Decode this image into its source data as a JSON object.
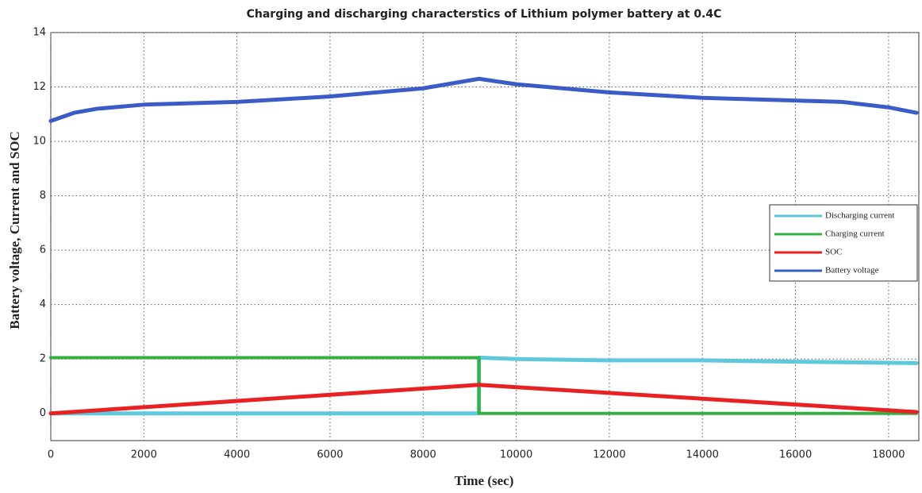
{
  "chart_data": {
    "type": "line",
    "title": "Charging and discharging characterstics of Lithium polymer  battery at 0.4C",
    "x_label": "Time (sec)",
    "y_label": "Battery voltage, Current and SOC",
    "xlim": [
      0,
      18650
    ],
    "ylim": [
      -1,
      14
    ],
    "xticks": [
      0,
      2000,
      4000,
      6000,
      8000,
      10000,
      12000,
      14000,
      16000,
      18000
    ],
    "yticks": [
      0,
      2,
      4,
      6,
      8,
      10,
      12,
      14
    ],
    "grid": true,
    "legend": "center right",
    "series": [
      {
        "name": "Discharging current",
        "color": "#5ec8dc",
        "x": [
          0,
          9200,
          9200,
          10000,
          12000,
          14000,
          16000,
          17000,
          18600
        ],
        "values": [
          0,
          0,
          2.05,
          2.0,
          1.95,
          1.95,
          1.9,
          1.88,
          1.85
        ]
      },
      {
        "name": "Charging current",
        "color": "#35b043",
        "x": [
          0,
          9200,
          9200,
          18600
        ],
        "values": [
          2.05,
          2.05,
          0,
          0
        ]
      },
      {
        "name": "SOC",
        "color": "#e82222",
        "x": [
          0,
          9200,
          18600
        ],
        "values": [
          0,
          1.05,
          0.05
        ]
      },
      {
        "name": "Battery voltage",
        "color": "#3b5cc6",
        "x": [
          0,
          500,
          1000,
          2000,
          4000,
          6000,
          8000,
          9200,
          10000,
          12000,
          14000,
          16000,
          17000,
          18000,
          18600
        ],
        "values": [
          10.75,
          11.05,
          11.2,
          11.35,
          11.45,
          11.65,
          11.95,
          12.3,
          12.1,
          11.8,
          11.6,
          11.5,
          11.45,
          11.25,
          11.05
        ]
      }
    ]
  }
}
